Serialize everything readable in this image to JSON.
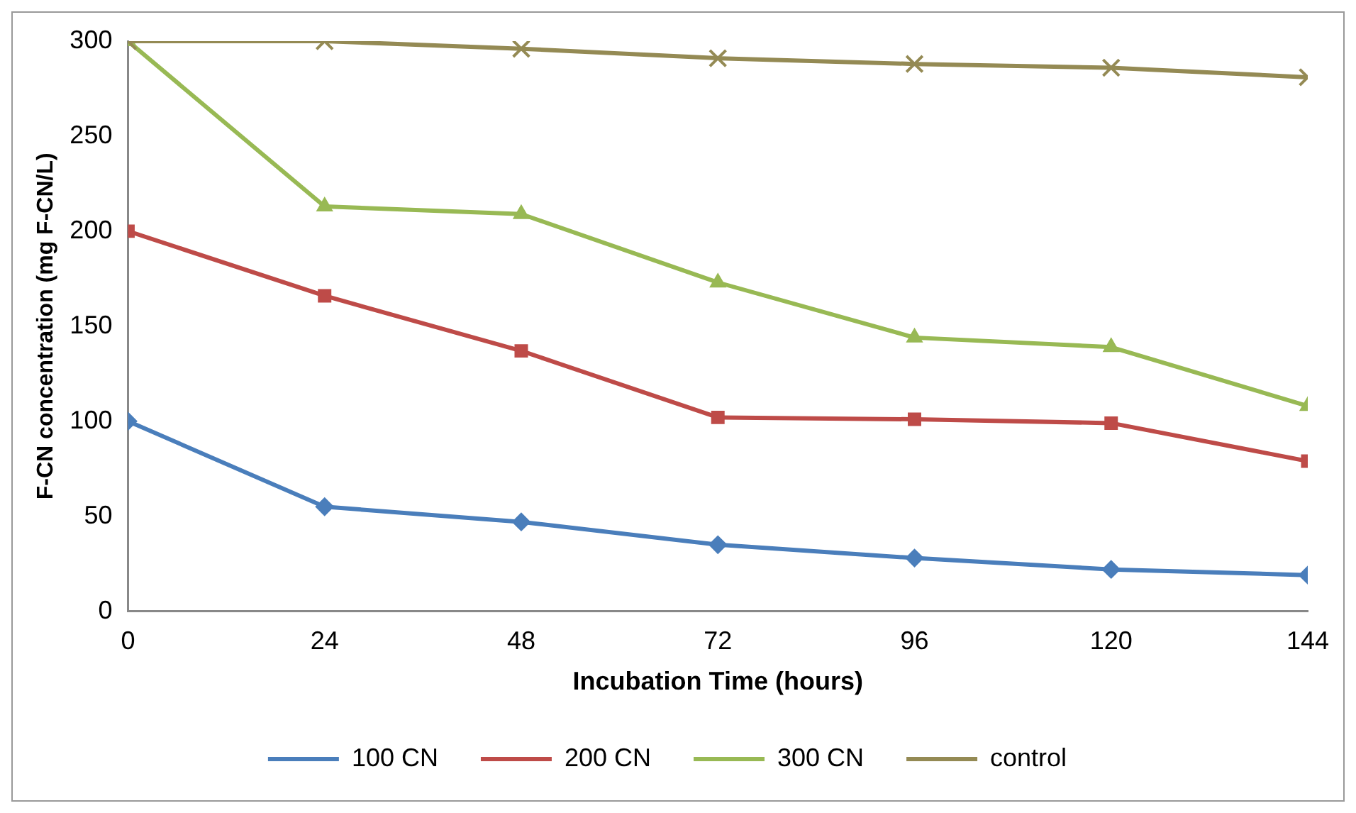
{
  "chart_data": {
    "type": "line",
    "xlabel": "Incubation Time (hours)",
    "ylabel": "F-CN concentration (mg F-CN/L)",
    "x": [
      0,
      24,
      48,
      72,
      96,
      120,
      144
    ],
    "xlim": [
      0,
      144
    ],
    "xticks": [
      0,
      24,
      48,
      72,
      96,
      120,
      144
    ],
    "ylim": [
      0,
      300
    ],
    "yticks": [
      0,
      50,
      100,
      150,
      200,
      250,
      300
    ],
    "grid": false,
    "legend": "bottom",
    "line_style": "solid",
    "series": [
      {
        "name": "100 CN",
        "color": "#4a7ebb",
        "marker": "diamond",
        "values": [
          100,
          55,
          47,
          35,
          28,
          22,
          19
        ]
      },
      {
        "name": "200 CN",
        "color": "#be4b48",
        "marker": "square",
        "values": [
          200,
          166,
          137,
          102,
          101,
          99,
          79
        ]
      },
      {
        "name": "300 CN",
        "color": "#98b954",
        "marker": "triangle",
        "values": [
          300,
          213,
          209,
          173,
          144,
          139,
          108
        ]
      },
      {
        "name": "control",
        "color": "#948a54",
        "marker": "cross",
        "values": [
          300,
          300,
          296,
          291,
          288,
          286,
          281
        ]
      }
    ]
  }
}
